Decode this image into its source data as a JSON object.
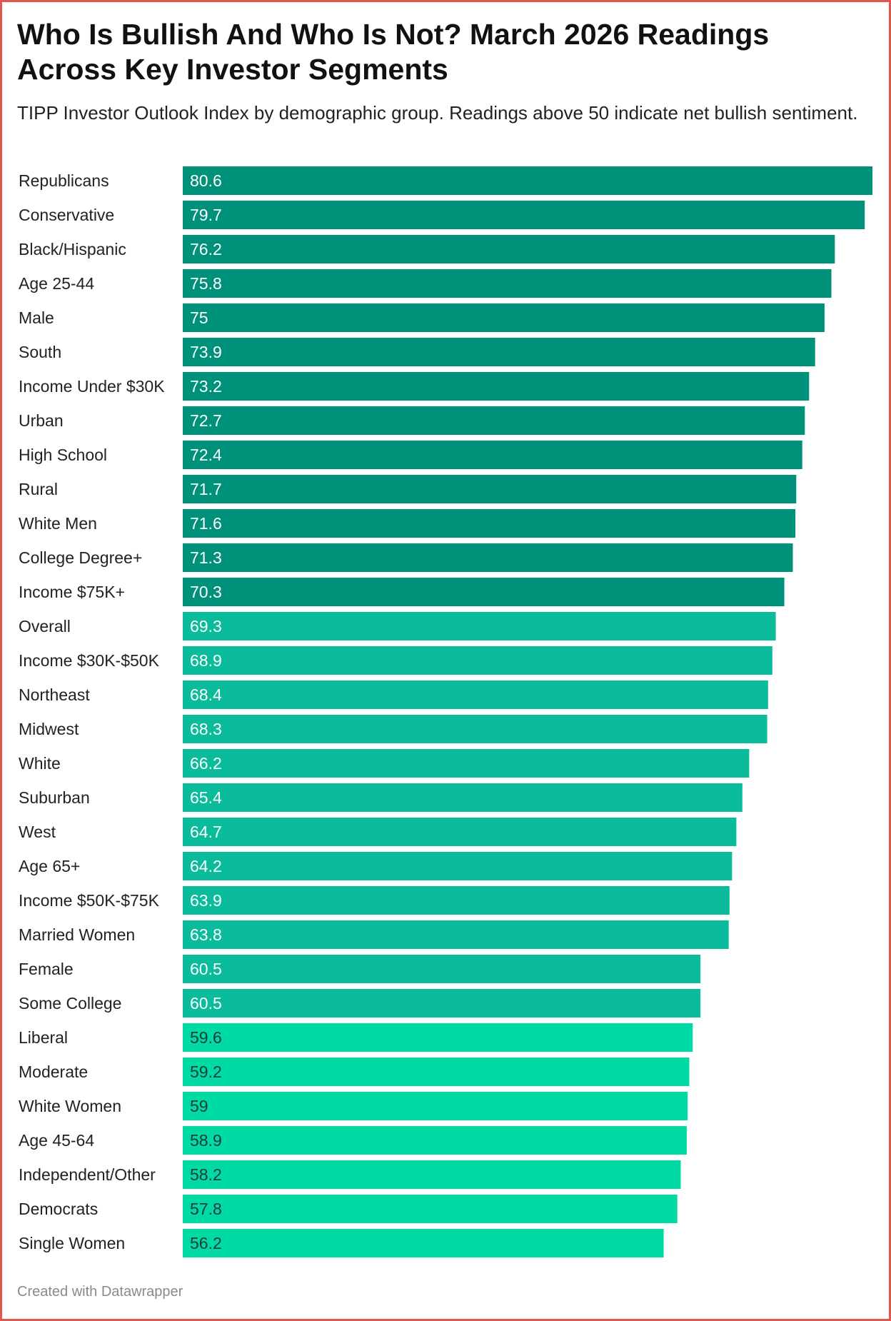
{
  "title": "Who Is Bullish And Who Is Not? March 2026 Readings Across Key Investor Segments",
  "subtitle": "TIPP Investor Outlook Index by demographic group. Readings above 50 indicate net bullish sentiment.",
  "footer": "Created with Datawrapper",
  "colors": {
    "frame": "#e0574f",
    "tier_high": "#00917a",
    "tier_mid": "#0abb9c",
    "tier_low": "#00dba6",
    "label_light": "#ffffff",
    "label_dark": "#1a3b33"
  },
  "chart_data": {
    "type": "bar",
    "orientation": "horizontal",
    "title": "Who Is Bullish And Who Is Not? March 2026 Readings Across Key Investor Segments",
    "subtitle": "TIPP Investor Outlook Index by demographic group. Readings above 50 indicate net bullish sentiment.",
    "xlim": [
      0,
      80.6
    ],
    "grid": false,
    "categories": [
      "Republicans",
      "Conservative",
      "Black/Hispanic",
      "Age 25-44",
      "Male",
      "South",
      "Income Under $30K",
      "Urban",
      "High School",
      "Rural",
      "White Men",
      "College Degree+",
      "Income $75K+",
      "Overall",
      "Income $30K-$50K",
      "Northeast",
      "Midwest",
      "White",
      "Suburban",
      "West",
      "Age 65+",
      "Income $50K-$75K",
      "Married Women",
      "Female",
      "Some College",
      "Liberal",
      "Moderate",
      "White Women",
      "Age 45-64",
      "Independent/Other",
      "Democrats",
      "Single Women"
    ],
    "values": [
      80.6,
      79.7,
      76.2,
      75.8,
      75,
      73.9,
      73.2,
      72.7,
      72.4,
      71.7,
      71.6,
      71.3,
      70.3,
      69.3,
      68.9,
      68.4,
      68.3,
      66.2,
      65.4,
      64.7,
      64.2,
      63.9,
      63.8,
      60.5,
      60.5,
      59.6,
      59.2,
      59,
      58.9,
      58.2,
      57.8,
      56.2
    ],
    "value_labels": [
      "80.6",
      "79.7",
      "76.2",
      "75.8",
      "75",
      "73.9",
      "73.2",
      "72.7",
      "72.4",
      "71.7",
      "71.6",
      "71.3",
      "70.3",
      "69.3",
      "68.9",
      "68.4",
      "68.3",
      "66.2",
      "65.4",
      "64.7",
      "64.2",
      "63.9",
      "63.8",
      "60.5",
      "60.5",
      "59.6",
      "59.2",
      "59",
      "58.9",
      "58.2",
      "57.8",
      "56.2"
    ],
    "tiers": [
      "high",
      "high",
      "high",
      "high",
      "high",
      "high",
      "high",
      "high",
      "high",
      "high",
      "high",
      "high",
      "high",
      "mid",
      "mid",
      "mid",
      "mid",
      "mid",
      "mid",
      "mid",
      "mid",
      "mid",
      "mid",
      "mid",
      "mid",
      "low",
      "low",
      "low",
      "low",
      "low",
      "low",
      "low"
    ]
  }
}
